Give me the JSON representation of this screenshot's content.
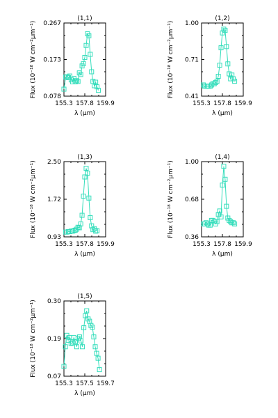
{
  "chart_data": [
    {
      "type": "line",
      "title": "(1,1)",
      "xlabel": "λ (μm)",
      "ylabel": "Flux (10⁻¹⁸ W cm⁻²μm⁻¹)",
      "xticks": [
        "155.3",
        "157.8",
        "159.9"
      ],
      "yticks": [
        "0.267",
        "0.173",
        "0.078"
      ],
      "xlim": [
        155.3,
        159.9
      ],
      "ylim": [
        0.078,
        0.267
      ],
      "color": "#33DDBB",
      "marker": "square",
      "x": [
        155.3,
        155.5,
        155.65,
        155.8,
        155.95,
        156.1,
        156.25,
        156.4,
        156.55,
        156.7,
        156.85,
        157.0,
        157.15,
        157.3,
        157.45,
        157.6,
        157.75,
        157.9,
        158.05,
        158.2,
        158.35,
        158.5,
        158.65,
        158.8,
        158.95,
        159.1
      ],
      "y": [
        0.096,
        0.127,
        0.128,
        0.126,
        0.13,
        0.12,
        0.115,
        0.124,
        0.115,
        0.118,
        0.116,
        0.138,
        0.134,
        0.156,
        0.162,
        0.178,
        0.209,
        0.239,
        0.234,
        0.186,
        0.141,
        0.116,
        0.105,
        0.114,
        0.102,
        0.093
      ]
    },
    {
      "type": "line",
      "title": "(1,2)",
      "xlabel": "λ (μm)",
      "ylabel": "Flux (10⁻¹⁸ W cm⁻²μm⁻¹)",
      "xticks": [
        "155.3",
        "157.8",
        "159.9"
      ],
      "yticks": [
        "1.00",
        "0.71",
        "0.41"
      ],
      "xlim": [
        155.3,
        159.9
      ],
      "ylim": [
        0.41,
        1.0
      ],
      "color": "#33DDBB",
      "marker": "square",
      "x": [
        155.5,
        155.65,
        155.8,
        155.95,
        156.1,
        156.25,
        156.4,
        156.55,
        156.7,
        156.85,
        157.0,
        157.15,
        157.3,
        157.45,
        157.6,
        157.75,
        157.9,
        158.05,
        158.2,
        158.35,
        158.5,
        158.65,
        158.8,
        158.95
      ],
      "y": [
        0.5,
        0.49,
        0.49,
        0.49,
        0.49,
        0.49,
        0.5,
        0.51,
        0.51,
        0.52,
        0.53,
        0.57,
        0.66,
        0.8,
        0.92,
        0.95,
        0.94,
        0.81,
        0.67,
        0.59,
        0.55,
        0.58,
        0.55,
        0.53
      ]
    },
    {
      "type": "line",
      "title": "(1,3)",
      "xlabel": "λ (μm)",
      "ylabel": "Flux (10⁻¹⁸ W cm⁻²μm⁻¹)",
      "xticks": [
        "155.3",
        "157.8",
        "159.9"
      ],
      "yticks": [
        "2.50",
        "1.72",
        "0.93"
      ],
      "xlim": [
        155.3,
        159.9
      ],
      "ylim": [
        0.93,
        2.5
      ],
      "color": "#33DDBB",
      "marker": "square",
      "x": [
        155.5,
        155.65,
        155.8,
        155.95,
        156.1,
        156.25,
        156.4,
        156.55,
        156.7,
        156.85,
        157.0,
        157.15,
        157.3,
        157.45,
        157.6,
        157.75,
        157.9,
        158.05,
        158.2,
        158.35,
        158.5,
        158.65,
        158.8,
        158.95
      ],
      "y": [
        1.03,
        1.03,
        1.04,
        1.04,
        1.05,
        1.05,
        1.06,
        1.07,
        1.09,
        1.13,
        1.12,
        1.2,
        1.38,
        1.78,
        2.18,
        2.36,
        2.26,
        1.74,
        1.33,
        1.16,
        1.08,
        1.1,
        1.05,
        1.06
      ]
    },
    {
      "type": "line",
      "title": "(1,4)",
      "xlabel": "λ (μm)",
      "ylabel": "Flux (10⁻¹⁸ W cm⁻²μm⁻¹)",
      "xticks": [
        "155.3",
        "157.8",
        "159.9"
      ],
      "yticks": [
        "1.00",
        "0.68",
        "0.36"
      ],
      "xlim": [
        155.3,
        159.9
      ],
      "ylim": [
        0.36,
        1.0
      ],
      "color": "#33DDBB",
      "marker": "square",
      "x": [
        155.5,
        155.65,
        155.8,
        155.95,
        156.1,
        156.25,
        156.4,
        156.55,
        156.7,
        156.85,
        157.0,
        157.15,
        157.3,
        157.45,
        157.6,
        157.75,
        157.9,
        158.05,
        158.2,
        158.35,
        158.5,
        158.65,
        158.8,
        158.95
      ],
      "y": [
        0.47,
        0.47,
        0.48,
        0.47,
        0.46,
        0.46,
        0.5,
        0.5,
        0.49,
        0.47,
        0.49,
        0.55,
        0.58,
        0.53,
        0.8,
        0.96,
        0.85,
        0.62,
        0.52,
        0.5,
        0.49,
        0.48,
        0.48,
        0.47
      ]
    },
    {
      "type": "line",
      "title": "(1,5)",
      "xlabel": "λ (μm)",
      "ylabel": "Flux (10⁻¹⁸ W cm⁻²μm⁻¹)",
      "xticks": [
        "155.3",
        "157.5",
        "159.7"
      ],
      "yticks": [
        "0.30",
        "0.19",
        "0.07"
      ],
      "xlim": [
        155.3,
        159.7
      ],
      "ylim": [
        0.07,
        0.3
      ],
      "color": "#33DDBB",
      "marker": "square",
      "x": [
        155.3,
        155.45,
        155.6,
        155.75,
        155.9,
        156.05,
        156.2,
        156.35,
        156.5,
        156.65,
        156.8,
        156.95,
        157.1,
        157.25,
        157.4,
        157.55,
        157.7,
        157.85,
        158.0,
        158.15,
        158.3,
        158.45,
        158.6,
        158.75,
        158.9,
        159.05
      ],
      "y": [
        0.1,
        0.16,
        0.195,
        0.18,
        0.188,
        0.17,
        0.172,
        0.188,
        0.175,
        0.16,
        0.185,
        0.19,
        0.178,
        0.16,
        0.218,
        0.255,
        0.27,
        0.245,
        0.238,
        0.225,
        0.22,
        0.19,
        0.16,
        0.14,
        0.125,
        0.09
      ]
    }
  ]
}
